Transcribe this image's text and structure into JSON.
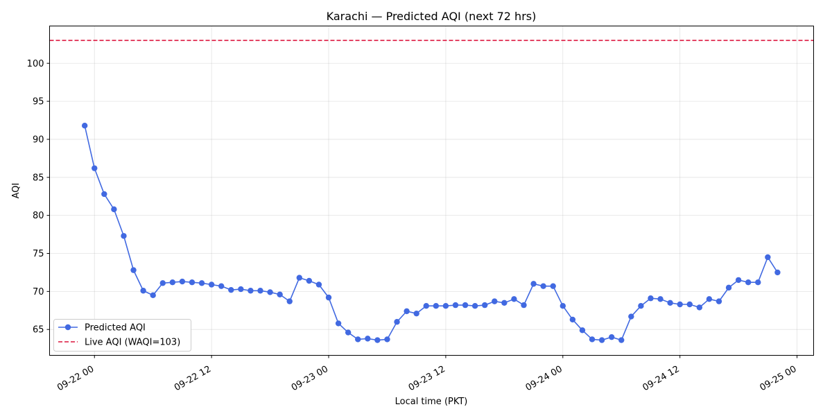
{
  "chart_data": {
    "type": "line",
    "title": "Karachi — Predicted AQI (next 72 hrs)",
    "xlabel": "Local time (PKT)",
    "ylabel": "AQI",
    "x_tick_labels": [
      "09-22 00",
      "09-22 12",
      "09-23 00",
      "09-23 12",
      "09-24 00",
      "09-24 12",
      "09-25 00"
    ],
    "x_tick_hours": [
      0,
      12,
      24,
      36,
      48,
      60,
      72
    ],
    "y_ticks": [
      65,
      70,
      75,
      80,
      85,
      90,
      95,
      100
    ],
    "ylim": [
      61.6,
      104.9
    ],
    "xlim_hours": [
      -4.6,
      73.7
    ],
    "grid": true,
    "legend_position": "lower-left",
    "colors": {
      "predicted": "#4169e1",
      "live": "#dc143c"
    },
    "series": [
      {
        "name": "Predicted AQI",
        "style": "line-marker",
        "x_hours": [
          -1,
          0,
          1,
          2,
          3,
          4,
          5,
          6,
          7,
          8,
          9,
          10,
          11,
          12,
          13,
          14,
          15,
          16,
          17,
          18,
          19,
          20,
          21,
          22,
          23,
          24,
          25,
          26,
          27,
          28,
          29,
          30,
          31,
          32,
          33,
          34,
          35,
          36,
          37,
          38,
          39,
          40,
          41,
          42,
          43,
          44,
          45,
          46,
          47,
          48,
          49,
          50,
          51,
          52,
          53,
          54,
          55,
          56,
          57,
          58,
          59,
          60,
          61,
          62,
          63,
          64,
          65,
          66,
          67,
          68,
          69,
          70
        ],
        "values": [
          91.8,
          86.2,
          82.8,
          80.8,
          77.3,
          72.8,
          70.1,
          69.5,
          71.1,
          71.2,
          71.3,
          71.2,
          71.1,
          70.9,
          70.7,
          70.2,
          70.3,
          70.1,
          70.1,
          69.9,
          69.6,
          68.7,
          71.8,
          71.4,
          70.9,
          69.2,
          65.8,
          64.6,
          63.7,
          63.8,
          63.6,
          63.7,
          66.0,
          67.4,
          67.1,
          68.1,
          68.1,
          68.1,
          68.2,
          68.2,
          68.1,
          68.2,
          68.7,
          68.5,
          69.0,
          68.2,
          71.0,
          70.7,
          70.7,
          68.1,
          66.3,
          64.9,
          63.7,
          63.6,
          64.0,
          63.6,
          66.7,
          68.1,
          69.1,
          69.0,
          68.5,
          68.3,
          68.3,
          67.9,
          69.0,
          68.7,
          70.5,
          71.5,
          71.2,
          71.2,
          74.5,
          72.5
        ]
      },
      {
        "name": "Live AQI (WAQI=103)",
        "style": "dashed-hline",
        "value": 103
      }
    ]
  }
}
